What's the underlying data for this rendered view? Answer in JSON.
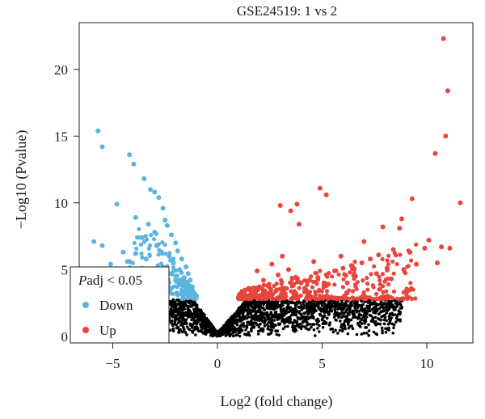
{
  "chart_data": {
    "type": "scatter",
    "title": "GSE24519: 1 vs 2",
    "xlabel": "Log2 (fold change)",
    "ylabel": "−Log10 (Pvalue)",
    "xlim": [
      -6.6,
      12.2
    ],
    "ylim": [
      -0.5,
      23.5
    ],
    "x_ticks": [
      -5,
      0,
      5,
      10
    ],
    "x_tick_labels": [
      "−5",
      "0",
      "5",
      "10"
    ],
    "y_ticks": [
      0,
      5,
      10,
      15,
      20
    ],
    "y_tick_labels": [
      "0",
      "5",
      "10",
      "15",
      "20"
    ],
    "grid": false,
    "legend": {
      "title_italic": "P",
      "title_rest": "adj < 0.05",
      "placement": "bottom-left",
      "entries": [
        {
          "label": "Down",
          "color": "#5ab4de"
        },
        {
          "label": "Up",
          "color": "#e8453c"
        }
      ]
    },
    "colors": {
      "down": "#5ab4de",
      "up": "#e8453c",
      "ns": "#000000"
    },
    "series": [
      {
        "name": "Down",
        "color": "#5ab4de",
        "points": [
          [
            -5.7,
            15.4
          ],
          [
            -5.5,
            14.2
          ],
          [
            -4.2,
            13.6
          ],
          [
            -4.0,
            12.9
          ],
          [
            -3.5,
            11.8
          ],
          [
            -3.2,
            11.0
          ],
          [
            -3.0,
            10.8
          ],
          [
            -2.8,
            10.4
          ],
          [
            -4.8,
            9.9
          ],
          [
            -2.6,
            9.6
          ],
          [
            -3.9,
            8.9
          ],
          [
            -3.3,
            8.4
          ],
          [
            -2.5,
            8.7
          ],
          [
            -5.9,
            7.1
          ],
          [
            -5.5,
            6.8
          ],
          [
            -3.6,
            7.4
          ],
          [
            -3.0,
            7.8
          ],
          [
            -2.4,
            8.3
          ],
          [
            -2.2,
            7.6
          ],
          [
            -4.5,
            6.3
          ],
          [
            -3.9,
            6.2
          ],
          [
            -2.9,
            6.8
          ],
          [
            -5.1,
            5.4
          ],
          [
            -4.3,
            5.6
          ],
          [
            -3.4,
            5.8
          ],
          [
            -2.0,
            7.0
          ],
          [
            -1.9,
            6.4
          ],
          [
            -1.7,
            5.8
          ],
          [
            -1.5,
            5.2
          ],
          [
            -1.4,
            4.7
          ],
          [
            -1.3,
            4.2
          ],
          [
            -1.2,
            3.7
          ],
          [
            -1.1,
            3.2
          ],
          [
            -1.0,
            3.0
          ],
          [
            -1.3,
            3.4
          ],
          [
            -1.6,
            4.4
          ],
          [
            -1.8,
            5.0
          ],
          [
            -2.1,
            5.5
          ],
          [
            -2.3,
            6.0
          ],
          [
            -2.6,
            5.2
          ],
          [
            -2.8,
            4.6
          ],
          [
            -3.1,
            4.3
          ],
          [
            -2.4,
            4.8
          ],
          [
            -2.0,
            4.2
          ],
          [
            -1.8,
            3.9
          ],
          [
            -1.5,
            3.5
          ],
          [
            -2.2,
            3.6
          ],
          [
            -2.7,
            3.8
          ],
          [
            -3.3,
            4.0
          ],
          [
            -4.0,
            4.5
          ],
          [
            -4.6,
            4.9
          ],
          [
            -5.3,
            4.4
          ],
          [
            -3.7,
            3.6
          ],
          [
            -1.9,
            3.1
          ],
          [
            -2.5,
            3.3
          ]
        ]
      },
      {
        "name": "Up",
        "color": "#e8453c",
        "points": [
          [
            10.8,
            22.3
          ],
          [
            11.0,
            18.4
          ],
          [
            10.9,
            15.0
          ],
          [
            10.4,
            13.7
          ],
          [
            11.6,
            10.0
          ],
          [
            4.9,
            11.1
          ],
          [
            9.3,
            10.3
          ],
          [
            5.2,
            10.6
          ],
          [
            3.8,
            9.9
          ],
          [
            3.0,
            9.8
          ],
          [
            3.5,
            9.4
          ],
          [
            3.9,
            8.4
          ],
          [
            10.1,
            7.2
          ],
          [
            7.9,
            8.2
          ],
          [
            8.7,
            8.1
          ],
          [
            8.8,
            8.8
          ],
          [
            10.7,
            6.7
          ],
          [
            11.1,
            6.6
          ],
          [
            9.9,
            6.6
          ],
          [
            9.2,
            6.3
          ],
          [
            8.4,
            6.5
          ],
          [
            7.7,
            6.1
          ],
          [
            7.3,
            5.8
          ],
          [
            6.9,
            5.5
          ],
          [
            6.4,
            5.3
          ],
          [
            6.0,
            5.1
          ],
          [
            5.6,
            4.9
          ],
          [
            5.2,
            4.6
          ],
          [
            4.8,
            4.4
          ],
          [
            4.4,
            4.2
          ],
          [
            4.0,
            4.0
          ],
          [
            3.6,
            3.8
          ],
          [
            3.2,
            3.6
          ],
          [
            2.8,
            3.4
          ],
          [
            2.4,
            3.2
          ],
          [
            2.0,
            3.0
          ],
          [
            1.6,
            2.9
          ],
          [
            1.2,
            2.8
          ],
          [
            1.0,
            2.9
          ],
          [
            1.5,
            3.6
          ],
          [
            2.2,
            4.2
          ],
          [
            2.9,
            4.6
          ],
          [
            3.4,
            5.0
          ],
          [
            1.9,
            4.9
          ],
          [
            2.6,
            5.4
          ],
          [
            3.1,
            6.0
          ],
          [
            4.6,
            5.6
          ],
          [
            5.9,
            6.0
          ],
          [
            7.0,
            7.1
          ],
          [
            8.1,
            5.1
          ],
          [
            8.9,
            5.0
          ],
          [
            9.5,
            5.4
          ],
          [
            10.5,
            5.5
          ],
          [
            6.6,
            4.5
          ],
          [
            7.6,
            4.7
          ],
          [
            5.3,
            3.9
          ],
          [
            4.2,
            3.5
          ],
          [
            3.7,
            3.2
          ],
          [
            6.2,
            4.0
          ],
          [
            8.3,
            4.3
          ]
        ]
      }
    ]
  }
}
